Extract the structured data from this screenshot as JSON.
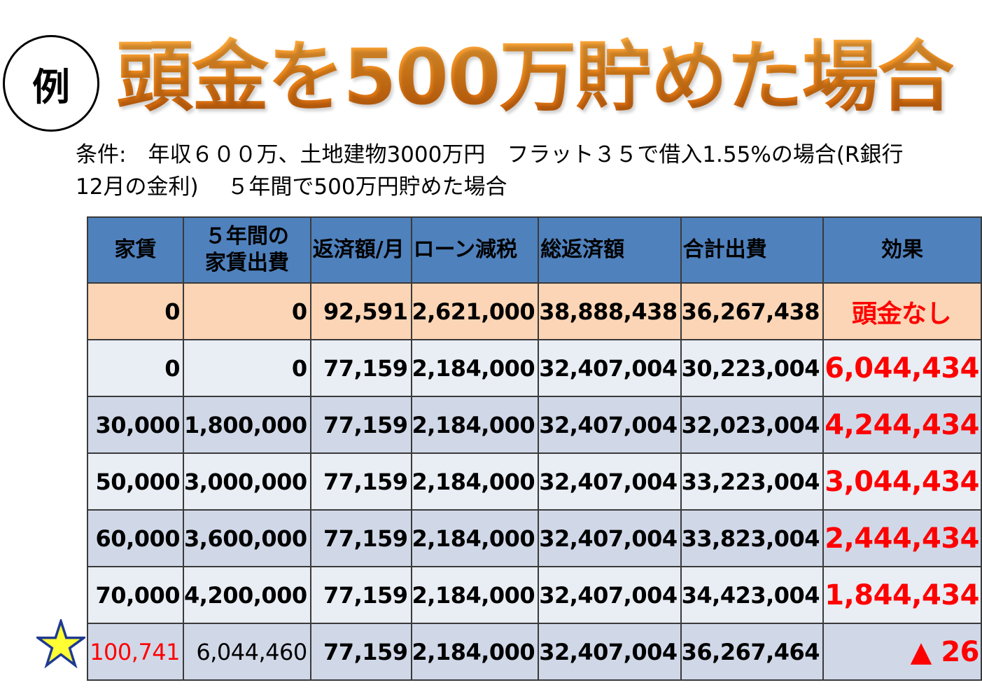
{
  "badge": "例",
  "title": "頭金を500万貯めた場合",
  "conditions": {
    "line1": "条件:　年収６００万、土地建物3000万円　フラット３５で借入1.55%の場合(R銀行",
    "line2": "12月の金利)　 ５年間で500万円貯めた場合"
  },
  "star_icon": "star-icon",
  "colors": {
    "title_orange": "#E87818",
    "header_blue": "#4F81BD",
    "highlight_peach": "#FBD5B5",
    "row_light": "#E9EDF4",
    "row_dark": "#D0D8E8",
    "effect_red": "#FF0000",
    "star_yellow": "#FFFF33",
    "star_outline": "#1F3A93"
  },
  "table": {
    "headers": {
      "rent": "家賃",
      "rent5_line1": "５年間の",
      "rent5_line2": "家賃出費",
      "monthly": "返済額/月",
      "tax": "ローン減税",
      "total": "総返済額",
      "sum": "合計出費",
      "effect": "効果"
    },
    "rows": [
      {
        "rent": "0",
        "rent5": "0",
        "monthly": "92,591",
        "tax": "2,621,000",
        "total": "38,888,438",
        "sum": "36,267,438",
        "effect": "頭金なし"
      },
      {
        "rent": "0",
        "rent5": "0",
        "monthly": "77,159",
        "tax": "2,184,000",
        "total": "32,407,004",
        "sum": "30,223,004",
        "effect": "6,044,434"
      },
      {
        "rent": "30,000",
        "rent5": "1,800,000",
        "monthly": "77,159",
        "tax": "2,184,000",
        "total": "32,407,004",
        "sum": "32,023,004",
        "effect": "4,244,434"
      },
      {
        "rent": "50,000",
        "rent5": "3,000,000",
        "monthly": "77,159",
        "tax": "2,184,000",
        "total": "32,407,004",
        "sum": "33,223,004",
        "effect": "3,044,434"
      },
      {
        "rent": "60,000",
        "rent5": "3,600,000",
        "monthly": "77,159",
        "tax": "2,184,000",
        "total": "32,407,004",
        "sum": "33,823,004",
        "effect": "2,444,434"
      },
      {
        "rent": "70,000",
        "rent5": "4,200,000",
        "monthly": "77,159",
        "tax": "2,184,000",
        "total": "32,407,004",
        "sum": "34,423,004",
        "effect": "1,844,434"
      },
      {
        "rent": "100,741",
        "rent5": "6,044,460",
        "monthly": "77,159",
        "tax": "2,184,000",
        "total": "32,407,004",
        "sum": "36,267,464",
        "effect": "▲ 26"
      }
    ]
  }
}
